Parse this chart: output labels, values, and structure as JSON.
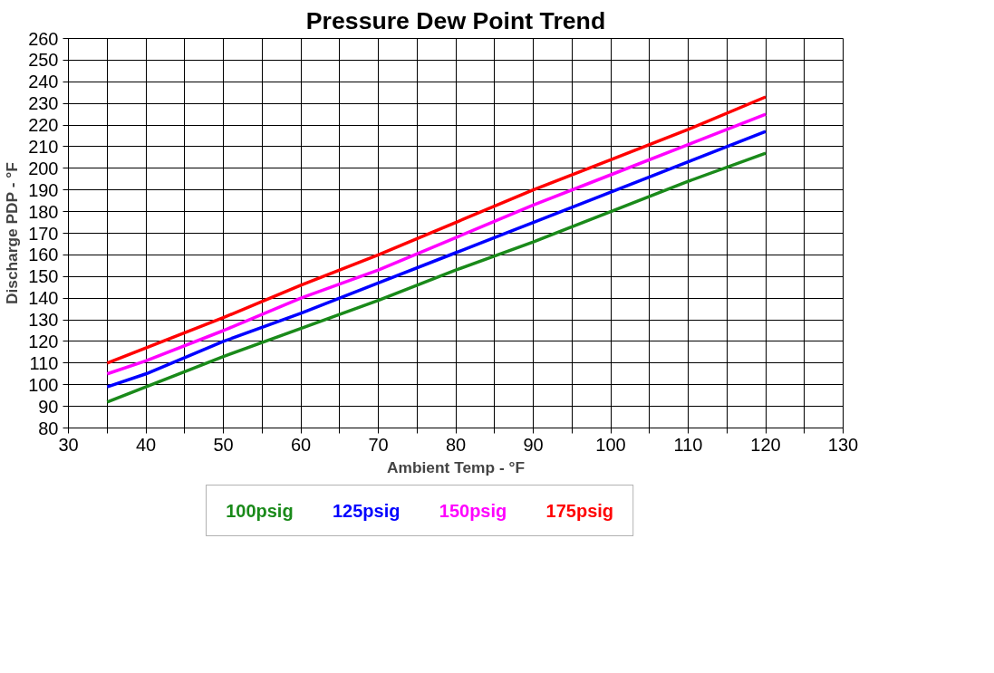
{
  "chart_data": {
    "type": "line",
    "title": "Pressure Dew Point Trend",
    "xlabel": "Ambient Temp - °F",
    "ylabel": "Discharge PDP - °F",
    "x": [
      35,
      40,
      50,
      60,
      70,
      80,
      90,
      100,
      110,
      120
    ],
    "series": [
      {
        "name": "100psig",
        "color": "#1a8a1a",
        "values": [
          92,
          99,
          113,
          126,
          139,
          153,
          166,
          180,
          194,
          207
        ]
      },
      {
        "name": "125psig",
        "color": "#0000ff",
        "values": [
          99,
          105,
          120,
          133,
          147,
          161,
          175,
          189,
          203,
          217
        ]
      },
      {
        "name": "150psig",
        "color": "#ff00ff",
        "values": [
          105,
          111,
          125,
          140,
          153,
          168,
          183,
          197,
          211,
          225
        ]
      },
      {
        "name": "175psig",
        "color": "#ff0000",
        "values": [
          110,
          117,
          131,
          146,
          160,
          175,
          190,
          204,
          218,
          233
        ]
      }
    ],
    "xlim": [
      30,
      130
    ],
    "xticks": [
      30,
      {
        "value": 35,
        "label": null
      },
      40,
      {
        "value": 45,
        "label": null
      },
      50,
      {
        "value": 55,
        "label": null
      },
      60,
      {
        "value": 65,
        "label": null
      },
      70,
      {
        "value": 75,
        "label": null
      },
      80,
      {
        "value": 85,
        "label": null
      },
      90,
      {
        "value": 95,
        "label": null
      },
      100,
      {
        "value": 105,
        "label": null
      },
      110,
      {
        "value": 115,
        "label": null
      },
      120,
      {
        "value": 125,
        "label": null
      },
      130
    ],
    "ylim": [
      80,
      260
    ],
    "yticks": [
      80,
      90,
      100,
      110,
      120,
      130,
      140,
      150,
      160,
      170,
      180,
      190,
      200,
      210,
      220,
      230,
      240,
      250,
      260
    ],
    "grid": true,
    "legend": "bottom",
    "marker": "none",
    "line_style": "solid"
  }
}
